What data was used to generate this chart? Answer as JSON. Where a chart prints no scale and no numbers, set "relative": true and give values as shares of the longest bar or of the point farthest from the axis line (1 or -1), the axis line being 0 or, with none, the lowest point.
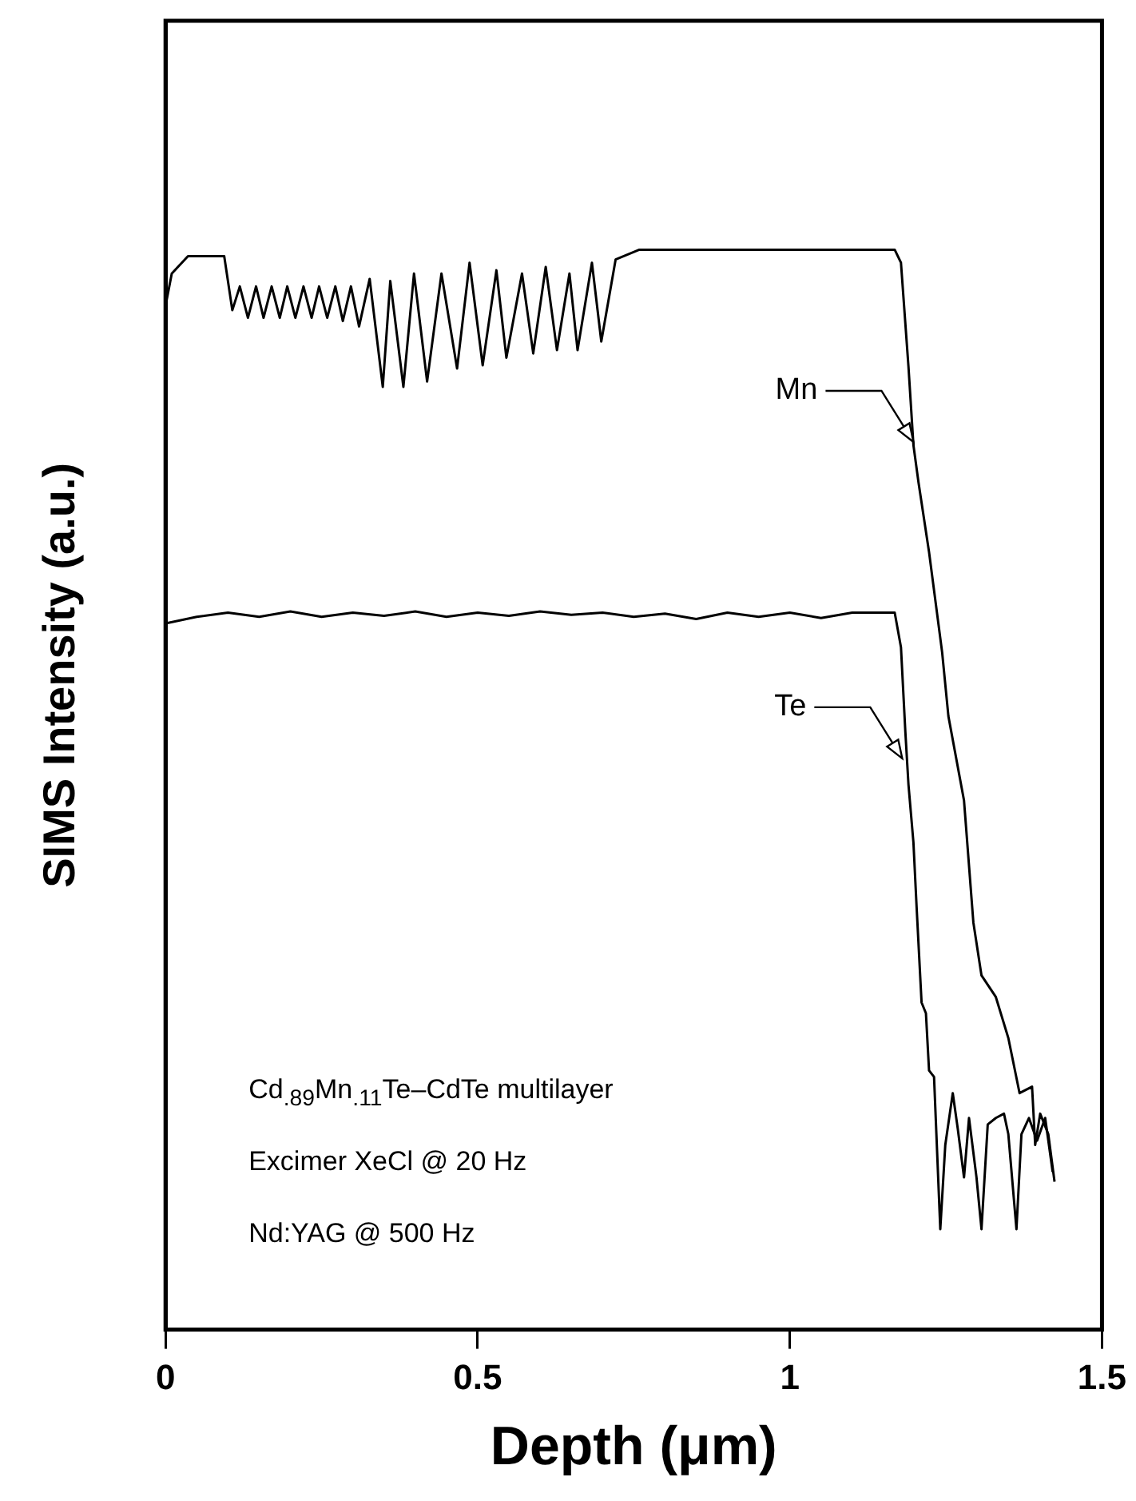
{
  "chart_data": {
    "type": "line",
    "relative": true,
    "xlabel": "Depth (μm)",
    "ylabel": "SIMS Intensity (a.u.)",
    "xlim": [
      0,
      1.5
    ],
    "xticks": [
      0,
      0.5,
      1,
      1.5
    ],
    "grid": false,
    "legend": false,
    "marker": "none",
    "line_style": "solid",
    "annotations": [
      {
        "text": "Mn",
        "x": 1.198,
        "y": 0.822
      },
      {
        "text": "Te",
        "x": 1.18,
        "y": 0.529
      },
      "Cd$_{.89}$Mn$_{.11}$Te–CdTe multilayer",
      "Excimer XeCl @ 20 Hz",
      "Nd:YAG @ 500 Hz"
    ],
    "series": [
      {
        "color": "#000000",
        "x": [
          0,
          0.01,
          0.036,
          0.094,
          0.107,
          0.119,
          0.132,
          0.145,
          0.157,
          0.17,
          0.183,
          0.195,
          0.208,
          0.221,
          0.234,
          0.246,
          0.259,
          0.272,
          0.284,
          0.297,
          0.31,
          0.327,
          0.348,
          0.36,
          0.381,
          0.398,
          0.419,
          0.442,
          0.467,
          0.487,
          0.508,
          0.53,
          0.546,
          0.571,
          0.589,
          0.609,
          0.627,
          0.647,
          0.66,
          0.683,
          0.698,
          0.721,
          0.759,
          1.168,
          1.178,
          1.19,
          1.198,
          1.206,
          1.223,
          1.244,
          1.254,
          1.279,
          1.294,
          1.307,
          1.33,
          1.35,
          1.368,
          1.388,
          1.393,
          1.401,
          1.414,
          1.424
        ],
        "values": [
          0.948,
          0.978,
          0.994,
          0.994,
          0.944,
          0.966,
          0.937,
          0.966,
          0.937,
          0.966,
          0.937,
          0.966,
          0.937,
          0.966,
          0.937,
          0.966,
          0.937,
          0.966,
          0.934,
          0.966,
          0.929,
          0.973,
          0.873,
          0.971,
          0.873,
          0.978,
          0.878,
          0.978,
          0.89,
          0.988,
          0.893,
          0.981,
          0.9,
          0.978,
          0.904,
          0.984,
          0.907,
          0.978,
          0.907,
          0.988,
          0.915,
          0.991,
          1,
          1,
          0.988,
          0.892,
          0.819,
          0.785,
          0.72,
          0.627,
          0.568,
          0.49,
          0.377,
          0.328,
          0.308,
          0.27,
          0.219,
          0.225,
          0.171,
          0.2,
          0.181,
          0.137
        ]
      },
      {
        "color": "#000000",
        "x": [
          0,
          0.05,
          0.1,
          0.15,
          0.2,
          0.25,
          0.3,
          0.35,
          0.4,
          0.45,
          0.5,
          0.55,
          0.6,
          0.65,
          0.7,
          0.75,
          0.8,
          0.85,
          0.9,
          0.95,
          1.0,
          1.05,
          1.1,
          1.168,
          1.178,
          1.185,
          1.19,
          1.198,
          1.203,
          1.211,
          1.218,
          1.223,
          1.231,
          1.241,
          1.249,
          1.261,
          1.269,
          1.279,
          1.287,
          1.299,
          1.307,
          1.317,
          1.33,
          1.343,
          1.35,
          1.363,
          1.371,
          1.383,
          1.396,
          1.409,
          1.421
        ],
        "values": [
          0.654,
          0.66,
          0.664,
          0.66,
          0.665,
          0.66,
          0.664,
          0.661,
          0.665,
          0.66,
          0.664,
          0.661,
          0.665,
          0.662,
          0.664,
          0.66,
          0.663,
          0.658,
          0.664,
          0.66,
          0.664,
          0.659,
          0.664,
          0.664,
          0.632,
          0.554,
          0.505,
          0.451,
          0.392,
          0.303,
          0.293,
          0.24,
          0.234,
          0.093,
          0.171,
          0.219,
          0.186,
          0.141,
          0.196,
          0.141,
          0.093,
          0.19,
          0.196,
          0.2,
          0.181,
          0.093,
          0.181,
          0.196,
          0.175,
          0.196,
          0.146
        ]
      }
    ]
  }
}
